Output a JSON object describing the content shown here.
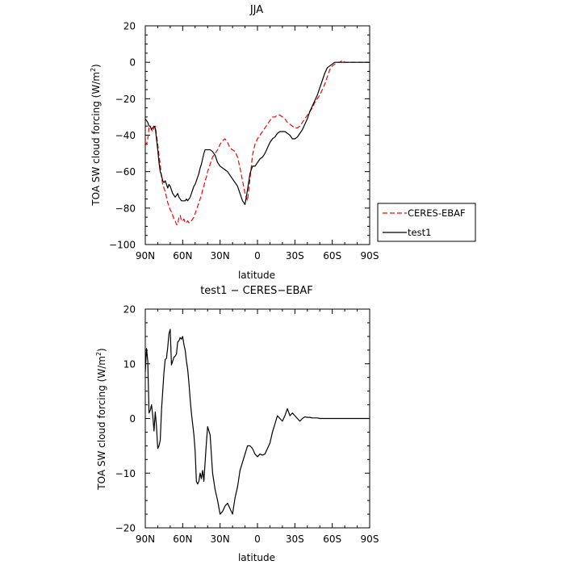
{
  "chart_data": [
    {
      "type": "line",
      "title": "JJA",
      "xlabel": "latitude",
      "ylabel": "TOA SW cloud forcing (W/m",
      "ylabel_sup": "2",
      "ylabel_close": ")",
      "xlim": [
        90,
        -90
      ],
      "ylim": [
        -100,
        20
      ],
      "xticks": [
        90,
        60,
        30,
        0,
        -30,
        -60,
        -90
      ],
      "xtick_labels": [
        "90N",
        "60N",
        "30N",
        "0",
        "30S",
        "60S",
        "90S"
      ],
      "yticks": [
        -100,
        -80,
        -60,
        -40,
        -20,
        0,
        20
      ],
      "ytick_labels": [
        "−100",
        "−80",
        "−60",
        "−40",
        "−20",
        "0",
        "20"
      ],
      "grid": false,
      "legend_position": "right",
      "series": [
        {
          "name": "CERES-EBAF",
          "color": "#ff0000",
          "dash": "dashed",
          "x": [
            90,
            89,
            88,
            87,
            86,
            85,
            84,
            83,
            82,
            81,
            80,
            79,
            78,
            77,
            76,
            75,
            74,
            73,
            72,
            71,
            70,
            69,
            68,
            67,
            66,
            65,
            64,
            63,
            62,
            61,
            60,
            59,
            58,
            57,
            56,
            55,
            54,
            53,
            52,
            51,
            50,
            49,
            48,
            47,
            46,
            45,
            44,
            43,
            42,
            41,
            40,
            38,
            36,
            34,
            32,
            30,
            28,
            26,
            24,
            22,
            20,
            18,
            16,
            14,
            12,
            10,
            8,
            6,
            4,
            2,
            0,
            -2,
            -4,
            -6,
            -8,
            -10,
            -12,
            -14,
            -16,
            -18,
            -20,
            -22,
            -24,
            -26,
            -28,
            -30,
            -32,
            -34,
            -36,
            -38,
            -40,
            -42,
            -44,
            -46,
            -48,
            -50,
            -52,
            -54,
            -56,
            -58,
            -60,
            -62,
            -64,
            -66,
            -68,
            -70,
            -72,
            -74,
            -76,
            -78,
            -80,
            -82,
            -84,
            -86,
            -88,
            -90
          ],
          "values": [
            -44,
            -45,
            -42,
            -36,
            -35,
            -37,
            -38,
            -36,
            -35,
            -40,
            -45,
            -51,
            -56,
            -63,
            -67,
            -69,
            -71,
            -74,
            -77,
            -79,
            -81,
            -82,
            -84,
            -86,
            -87,
            -89,
            -89,
            -85,
            -84,
            -87,
            -87,
            -86,
            -88,
            -88,
            -87,
            -88,
            -88,
            -87,
            -86,
            -85,
            -83,
            -81,
            -79,
            -77,
            -75,
            -73,
            -70,
            -68,
            -65,
            -63,
            -60,
            -56,
            -52,
            -50,
            -48,
            -45,
            -43,
            -42,
            -44,
            -47,
            -48,
            -49,
            -52,
            -58,
            -65,
            -72,
            -76,
            -64,
            -51,
            -45,
            -42,
            -40,
            -38,
            -36,
            -34,
            -32,
            -30,
            -30,
            -29,
            -29,
            -30,
            -31,
            -33,
            -34,
            -35,
            -36,
            -36,
            -35,
            -33,
            -31,
            -29,
            -27,
            -25,
            -22,
            -20,
            -18,
            -15,
            -12,
            -8,
            -4,
            -2,
            -1,
            0,
            0,
            1,
            0,
            0,
            0,
            0,
            0,
            0,
            0,
            0,
            0,
            0,
            0
          ]
        },
        {
          "name": "test1",
          "color": "#000000",
          "dash": "solid",
          "x": [
            90,
            89,
            88,
            87,
            86,
            85,
            84,
            83,
            82,
            81,
            80,
            79,
            78,
            77,
            76,
            75,
            74,
            73,
            72,
            71,
            70,
            69,
            68,
            67,
            66,
            65,
            64,
            63,
            62,
            61,
            60,
            59,
            58,
            57,
            56,
            55,
            54,
            53,
            52,
            51,
            50,
            49,
            48,
            47,
            46,
            45,
            44,
            43,
            42,
            41,
            40,
            38,
            36,
            34,
            32,
            30,
            28,
            26,
            24,
            22,
            20,
            18,
            16,
            14,
            12,
            10,
            8,
            6,
            4,
            2,
            0,
            -2,
            -4,
            -6,
            -8,
            -10,
            -12,
            -14,
            -16,
            -18,
            -20,
            -22,
            -24,
            -26,
            -28,
            -30,
            -32,
            -34,
            -36,
            -38,
            -40,
            -42,
            -44,
            -46,
            -48,
            -50,
            -52,
            -54,
            -56,
            -58,
            -60,
            -62,
            -64,
            -66,
            -68,
            -70,
            -72,
            -74,
            -76,
            -78,
            -80,
            -82,
            -84,
            -86,
            -88,
            -90
          ],
          "values": [
            -31,
            -32,
            -33,
            -35,
            -35,
            -37,
            -36,
            -35,
            -36,
            -42,
            -48,
            -55,
            -60,
            -62,
            -65,
            -66,
            -65,
            -67,
            -69,
            -67,
            -68,
            -70,
            -72,
            -73,
            -74,
            -73,
            -72,
            -74,
            -75,
            -76,
            -76,
            -76,
            -76,
            -75,
            -76,
            -75,
            -74,
            -72,
            -70,
            -68,
            -67,
            -65,
            -63,
            -61,
            -58,
            -56,
            -53,
            -50,
            -48,
            -48,
            -48,
            -48,
            -49,
            -51,
            -55,
            -57,
            -58,
            -59,
            -60,
            -62,
            -64,
            -66,
            -68,
            -72,
            -76,
            -78,
            -70,
            -61,
            -57,
            -57,
            -55,
            -53,
            -52,
            -50,
            -47,
            -44,
            -42,
            -41,
            -39,
            -38,
            -38,
            -38,
            -39,
            -40,
            -42,
            -42,
            -41,
            -39,
            -37,
            -34,
            -31,
            -27,
            -24,
            -21,
            -18,
            -14,
            -10,
            -6,
            -3,
            -2,
            -1,
            0,
            0,
            0,
            0,
            0,
            0,
            0,
            0,
            0,
            0,
            0,
            0,
            0,
            0,
            0
          ]
        }
      ]
    },
    {
      "type": "line",
      "title": "test1 − CERES−EBAF",
      "xlabel": "latitude",
      "ylabel": "TOA SW cloud forcing (W/m",
      "ylabel_sup": "2",
      "ylabel_close": ")",
      "xlim": [
        90,
        -90
      ],
      "ylim": [
        -20,
        20
      ],
      "xticks": [
        90,
        60,
        30,
        0,
        -30,
        -60,
        -90
      ],
      "xtick_labels": [
        "90N",
        "60N",
        "30N",
        "0",
        "30S",
        "60S",
        "90S"
      ],
      "yticks": [
        -20,
        -10,
        0,
        10,
        20
      ],
      "ytick_labels": [
        "−20",
        "−10",
        "0",
        "10",
        "20"
      ],
      "grid": false,
      "series": [
        {
          "color": "#000000",
          "dash": "solid",
          "x": [
            90,
            89,
            88,
            87,
            86,
            85,
            84,
            83,
            82,
            81,
            80,
            79,
            78,
            77,
            76,
            75,
            74,
            73,
            72,
            71,
            70,
            69,
            68,
            67,
            66,
            65,
            64,
            63,
            62,
            61,
            60,
            59,
            58,
            57,
            56,
            55,
            54,
            53,
            52,
            51,
            50,
            49,
            48,
            47,
            46,
            45,
            44,
            43,
            42,
            41,
            40,
            38,
            36,
            34,
            32,
            30,
            28,
            26,
            24,
            22,
            20,
            18,
            16,
            14,
            12,
            10,
            8,
            6,
            4,
            2,
            0,
            -2,
            -4,
            -6,
            -8,
            -10,
            -12,
            -14,
            -16,
            -18,
            -20,
            -22,
            -24,
            -26,
            -28,
            -30,
            -32,
            -34,
            -36,
            -38,
            -40,
            -42,
            -44,
            -46,
            -48,
            -50,
            -52,
            -54,
            -56,
            -58,
            -60,
            -62,
            -64,
            -66,
            -68,
            -70,
            -72,
            -74,
            -76,
            -78,
            -80,
            -82,
            -84,
            -86,
            -88,
            -90
          ],
          "values": [
            8.5,
            12.8,
            10.5,
            1.0,
            1.5,
            2.5,
            0.5,
            -2.3,
            1.2,
            -1.5,
            -5.5,
            -5.0,
            -4.0,
            1.5,
            5.0,
            8.5,
            10.8,
            11.0,
            13.0,
            15.5,
            16.3,
            9.8,
            10.5,
            11.2,
            11.4,
            11.8,
            14.0,
            14.2,
            14.8,
            14.5,
            15.0,
            13.5,
            12.5,
            10.5,
            9.0,
            6.5,
            3.5,
            1.0,
            -1.0,
            -3.0,
            -6.0,
            -11.5,
            -12.0,
            -11.5,
            -10.0,
            -11.0,
            -9.5,
            -11.5,
            -8.0,
            -4.5,
            -1.5,
            -3.0,
            -10.0,
            -13.0,
            -15.0,
            -17.5,
            -17.0,
            -16.0,
            -15.5,
            -16.5,
            -17.5,
            -14.5,
            -12.5,
            -9.5,
            -8.0,
            -6.5,
            -5.0,
            -5.0,
            -5.5,
            -6.5,
            -7.0,
            -6.5,
            -6.7,
            -6.5,
            -5.5,
            -4.5,
            -2.5,
            -1.0,
            0.5,
            0.0,
            -0.5,
            0.5,
            1.8,
            0.5,
            1.0,
            0.5,
            0.0,
            -0.5,
            0.0,
            0.3,
            0.2,
            0.2,
            0.1,
            0.1,
            0.1,
            0.0,
            0.0,
            0.0,
            0.0,
            0.0,
            0.0,
            0.0,
            0.0,
            0.0,
            0.0,
            0.0,
            0.0,
            0.0,
            0.0,
            0.0,
            0.0,
            0.0,
            0.0,
            0.0,
            0.0,
            0.0
          ]
        }
      ]
    }
  ]
}
